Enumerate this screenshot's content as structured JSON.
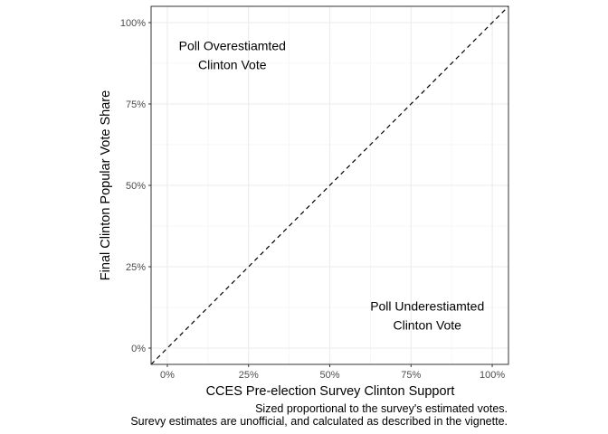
{
  "chart_data": {
    "type": "scatter",
    "title": "",
    "xlabel": "CCES Pre-election Survey Clinton Support",
    "ylabel": "Final Clinton Popular Vote Share",
    "xlim": [
      -0.05,
      1.05
    ],
    "ylim": [
      -0.05,
      1.05
    ],
    "x_ticks": [
      0,
      0.25,
      0.5,
      0.75,
      1.0
    ],
    "x_tick_labels": [
      "0%",
      "25%",
      "50%",
      "75%",
      "100%"
    ],
    "y_ticks": [
      0,
      0.25,
      0.5,
      0.75,
      1.0
    ],
    "y_tick_labels": [
      "0%",
      "25%",
      "50%",
      "75%",
      "100%"
    ],
    "grid": true,
    "reference_line": {
      "slope": 1,
      "intercept": 0,
      "style": "dashed"
    },
    "points": [],
    "annotations": [
      {
        "lines": [
          "Poll Overestiamted",
          "Clinton Vote"
        ],
        "x": 0.2,
        "y": 0.9
      },
      {
        "lines": [
          "Poll Underestiamted",
          "Clinton Vote"
        ],
        "x": 0.8,
        "y": 0.1
      }
    ],
    "caption": [
      "Sized proportional to the survey's estimated votes.",
      "Surevy estimates are unofficial, and calculated as described in the vignette."
    ]
  },
  "colors": {
    "panel_border": "#333333",
    "grid_major": "#ebebeb",
    "grid_minor": "#f5f5f5",
    "reference_line": "#000000",
    "tick_label": "#4d4d4d"
  }
}
